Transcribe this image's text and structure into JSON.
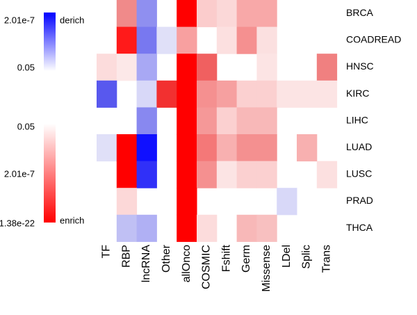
{
  "chart_data": {
    "type": "heatmap",
    "rows": [
      "BRCA",
      "COADREAD",
      "HNSC",
      "KIRC",
      "LIHC",
      "LUAD",
      "LUSC",
      "PRAD",
      "THCA"
    ],
    "columns": [
      "TF",
      "RBP",
      "lncRNA",
      "Other",
      "allOnco",
      "COSMIC",
      "Fshift",
      "Germ",
      "Missense",
      "LDel",
      "Splic",
      "Trans"
    ],
    "cell_colors": [
      [
        null,
        "#f08a8a",
        "#8f8ff0",
        null,
        "#ff0000",
        "#fbcccc",
        "#fbd8d8",
        "#f8a8a8",
        "#f8a8a8",
        null,
        null,
        null
      ],
      [
        null,
        "#ff1a1a",
        "#7878f0",
        "#e0e0f8",
        "#f8a0a0",
        null,
        "#fce0e0",
        "#f59090",
        "#fbe0e0",
        null,
        null,
        null
      ],
      [
        "#fcdcdc",
        "#fce8e8",
        "#a8a8f4",
        null,
        "#ff0000",
        "#f06060",
        null,
        null,
        "#fce4e4",
        null,
        null,
        "#f08080"
      ],
      [
        "#5858ee",
        null,
        "#d8d8f8",
        "#f23030",
        "#ff0000",
        "#f59090",
        "#f6a0a0",
        "#fbd0d0",
        "#fbd0d0",
        "#fce4e4",
        "#fce4e4",
        "#fce4e4"
      ],
      [
        null,
        null,
        "#8888f0",
        null,
        "#ff0000",
        "#f59898",
        "#fbd0d0",
        "#f8b8b8",
        "#f8b8b8",
        null,
        null,
        null
      ],
      [
        "#e0e0f8",
        "#ff0000",
        "#1010ff",
        null,
        "#ff0000",
        "#f47878",
        "#f8b0b0",
        "#f49090",
        "#f49090",
        null,
        "#f8b0b0",
        null
      ],
      [
        null,
        "#ff0000",
        "#3030f8",
        null,
        "#ff0000",
        "#f59090",
        "#fce4e4",
        "#fbd0d0",
        "#fbd0d0",
        null,
        null,
        "#fce0e0"
      ],
      [
        null,
        "#fcd8d8",
        null,
        null,
        "#ff0000",
        null,
        null,
        null,
        null,
        "#d8d8f8",
        null,
        null
      ],
      [
        null,
        "#c0c0f4",
        "#b0b0f4",
        null,
        "#ff0000",
        "#fcdcdc",
        null,
        "#f8b8b8",
        "#f8c0c0",
        null,
        null,
        null
      ]
    ],
    "deplete_scale": {
      "name": "derich",
      "color": "#0000ff",
      "ticks": [
        "2.01e-7",
        "0.05"
      ]
    },
    "enrich_scale": {
      "name": "enrich",
      "color": "#ff0000",
      "ticks": [
        "0.05",
        "2.01e-7",
        "1.38e-22"
      ]
    }
  }
}
